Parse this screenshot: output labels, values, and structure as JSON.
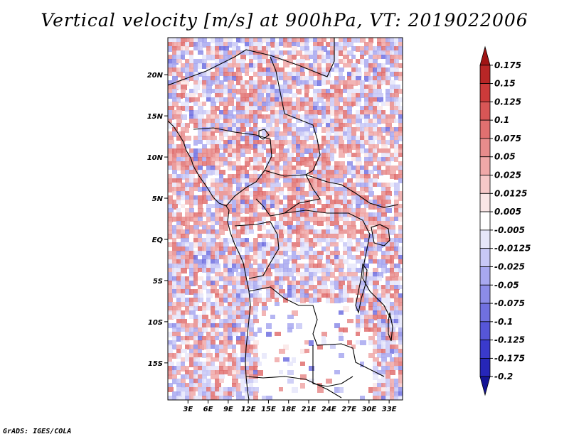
{
  "title": "Vertical velocity [m/s] at 900hPa, VT: 2019022006",
  "credit": "GrADS: IGES/COLA",
  "map": {
    "lat_labels": [
      "20N",
      "15N",
      "10N",
      "5N",
      "EQ",
      "5S",
      "10S",
      "15S"
    ],
    "lat_values": [
      20,
      15,
      10,
      5,
      0,
      -5,
      -10,
      -15
    ],
    "lon_labels": [
      "3E",
      "6E",
      "9E",
      "12E",
      "15E",
      "18E",
      "21E",
      "24E",
      "27E",
      "30E",
      "33E"
    ],
    "lon_values": [
      3,
      6,
      9,
      12,
      15,
      18,
      21,
      24,
      27,
      30,
      33
    ],
    "lat_range": [
      -19.5,
      24.5
    ],
    "lon_range": [
      0,
      35
    ],
    "field": "vertical velocity at 900hPa"
  },
  "colorbar": {
    "labels": [
      "0.175",
      "0.15",
      "0.125",
      "0.1",
      "0.075",
      "0.05",
      "0.025",
      "0.0125",
      "0.005",
      "-0.005",
      "-0.0125",
      "-0.025",
      "-0.05",
      "-0.075",
      "-0.1",
      "-0.125",
      "-0.175",
      "-0.2"
    ],
    "colors": [
      "#a01414",
      "#b82626",
      "#cc3a3a",
      "#d85656",
      "#e07070",
      "#e88c8c",
      "#f0a8a8",
      "#f6c8c8",
      "#fae6e6",
      "#ffffff",
      "#e6e6fa",
      "#c8c8f6",
      "#a8a8f0",
      "#8c8ce8",
      "#7070e0",
      "#5656d8",
      "#3a3acc",
      "#2626b8",
      "#141496"
    ]
  }
}
